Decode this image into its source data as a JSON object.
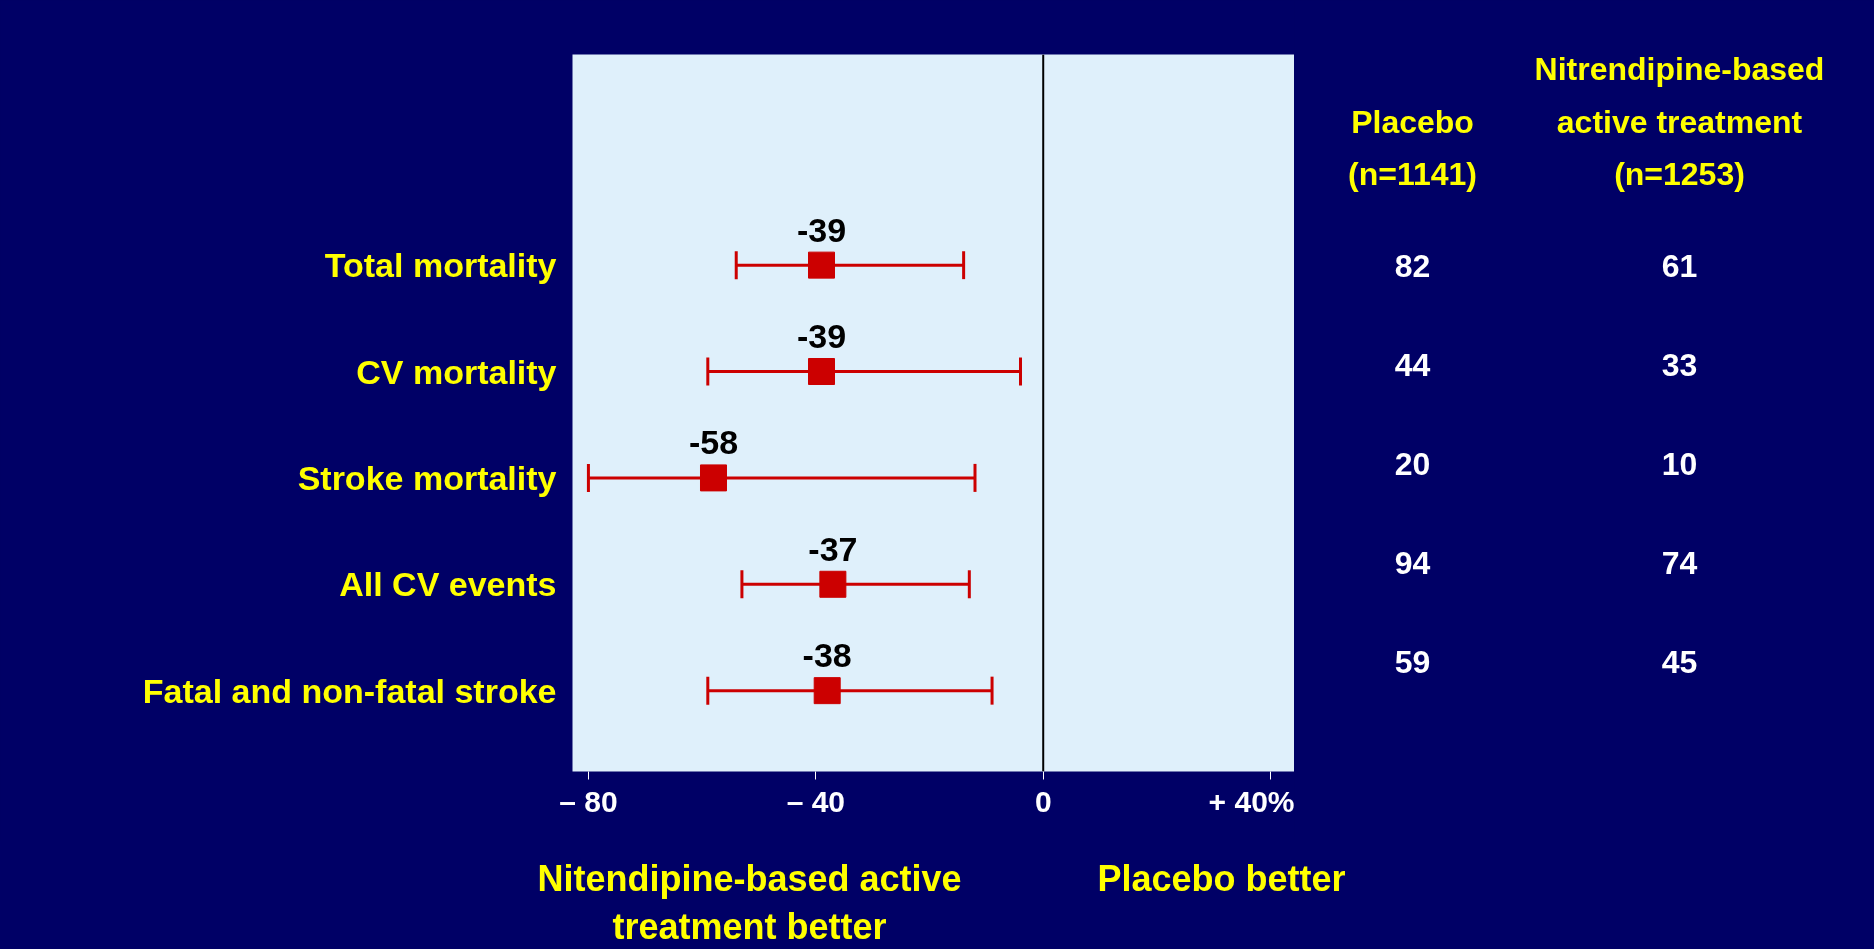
{
  "chart_data": {
    "type": "scatter",
    "orientation": "horizontal",
    "marker": "square",
    "data_labels": true,
    "grid": false,
    "categories": [
      "Total mortality",
      "CV mortality",
      "Stroke mortality",
      "All CV events",
      "Fatal and non-fatal stroke"
    ],
    "series": [
      {
        "color": "#cc0000",
        "values": [
          -39,
          -39,
          -58,
          -37,
          -38
        ],
        "errors": [
          [
            -54,
            -14
          ],
          [
            -59,
            -4
          ],
          [
            -80,
            -12
          ],
          [
            -53,
            -13
          ],
          [
            -59,
            -9
          ]
        ]
      }
    ],
    "xlim": [
      -82.8,
      44.2
    ],
    "xticks": [
      {
        "value": -80,
        "label": "– 80"
      },
      {
        "value": -40,
        "label": "– 40"
      },
      0,
      {
        "value": 40,
        "label": "+ 40%"
      }
    ],
    "ref_lines": [
      {
        "axis": "x",
        "value": 0,
        "color": "#000000"
      }
    ],
    "annotations": [
      "Nitendipine-based active\ntreatment better",
      "Placebo better",
      "Placebo\n(n=1141)",
      "Nitrendipine-based\nactive treatment\n(n=1253)",
      "82",
      "61",
      "44",
      "33",
      "20",
      "10",
      "94",
      "74",
      "59",
      "45"
    ]
  }
}
